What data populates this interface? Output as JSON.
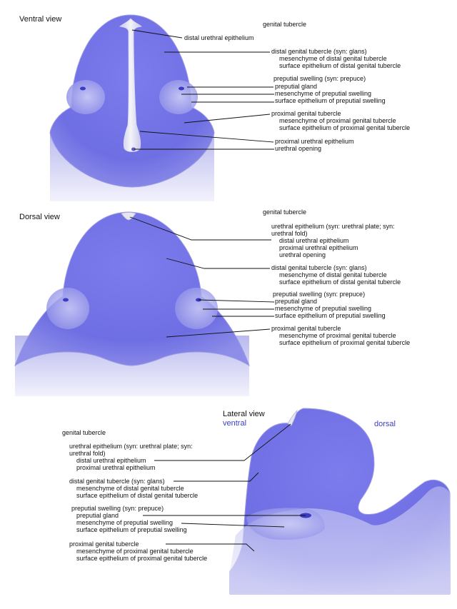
{
  "views": {
    "ventral": {
      "title": "Ventral view",
      "labels": [
        "genital tubercle",
        "distal urethral epithelium",
        "distal genital tubercle (syn: glans)",
        "mesenchyme of distal genital tubercle",
        "surface epithelium of distal genital tubercle",
        "preputial swelling (syn: prepuce)",
        "preputial gland",
        "mesenchyme of preputial swelling",
        "surface epithelium of preputial swelling",
        "proximal genital tubercle",
        "mesenchyme of proximal genital tubercle",
        "surface epithelium of proximal genital tubercle",
        "proximal urethral epithelium",
        "urethral opening"
      ]
    },
    "dorsal": {
      "title": "Dorsal view",
      "labels": [
        "genital tubercle",
        "urethral epithelium (syn: urethral plate; syn:",
        "urethral fold)",
        "distal urethral epithelium",
        "proximal urethral epithelium",
        "urethral opening",
        "distal genital tubercle (syn: glans)",
        "mesenchyme of distal genital tubercle",
        "surface epithelium of distal genital tubercle",
        "preputial swelling (syn: prepuce)",
        "preputial gland",
        "mesenchyme of preputial swelling",
        "surface epithelium of preputial swelling",
        "proximal genital tubercle",
        "mesenchyme of proximal genital tubercle",
        "surface epithelium of proximal genital tubercle"
      ]
    },
    "lateral": {
      "title": "Lateral view",
      "ventral_label": "ventral",
      "dorsal_label": "dorsal",
      "labels": [
        "genital tubercle",
        "urethral epithelium (syn: urethral plate; syn:",
        "urethral fold)",
        "distal urethral epithelium",
        "proximal urethral epithelium",
        "distal genital tubercle (syn: glans)",
        "mesenchyme of distal genital tubercle",
        "surface epithelium of distal genital tubercle",
        "preputial swelling (syn: prepuce)",
        "preputial gland",
        "mesenchyme of preputial swelling",
        "surface epithelium of preputial swelling",
        "proximal genital tubercle",
        "mesenchyme of proximal genital tubercle",
        "surface epithelium of proximal genital tubercle"
      ]
    }
  },
  "colors": {
    "tissue": "#7a7ae6",
    "tissue_light": "#b8b8f2",
    "base_gradient": "#c9c9f3",
    "epithelium": "#e8e8ee",
    "gland": "#3c3cc0",
    "orientation_text": "#3d3fc4"
  }
}
